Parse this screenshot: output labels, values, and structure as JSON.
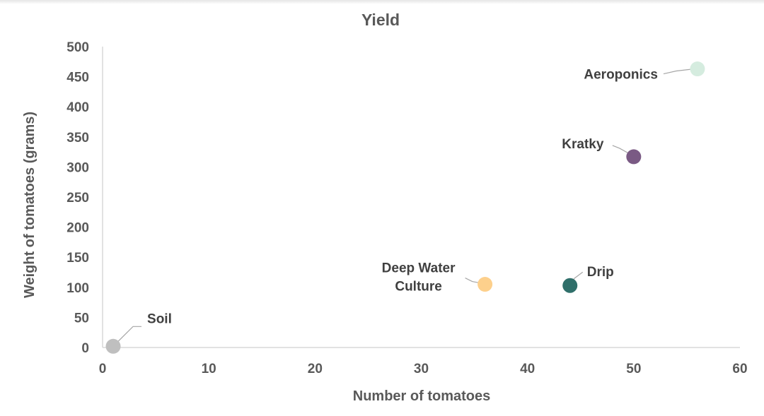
{
  "chart_data": {
    "type": "scatter",
    "title": "Yield",
    "xlabel": "Number of tomatoes",
    "ylabel": "Weight of tomatoes (grams)",
    "xlim": [
      0,
      60
    ],
    "ylim": [
      0,
      500
    ],
    "xticks": [
      "0",
      "10",
      "20",
      "30",
      "40",
      "50",
      "60"
    ],
    "yticks": [
      "0",
      "50",
      "100",
      "150",
      "200",
      "250",
      "300",
      "350",
      "400",
      "450",
      "500"
    ],
    "grid": false,
    "legend": "none",
    "points": [
      {
        "label": "Soil",
        "x": 1,
        "y": 2,
        "color": "#bfbfbf"
      },
      {
        "label": "Deep Water Culture",
        "label_lines": [
          "Deep Water",
          "Culture"
        ],
        "x": 36,
        "y": 105,
        "color": "#fdd08c"
      },
      {
        "label": "Drip",
        "x": 44,
        "y": 103,
        "color": "#2f6f6a"
      },
      {
        "label": "Kratky",
        "x": 50,
        "y": 317,
        "color": "#7a5a84"
      },
      {
        "label": "Aeroponics",
        "x": 56,
        "y": 463,
        "color": "#d5ecdf"
      }
    ]
  }
}
